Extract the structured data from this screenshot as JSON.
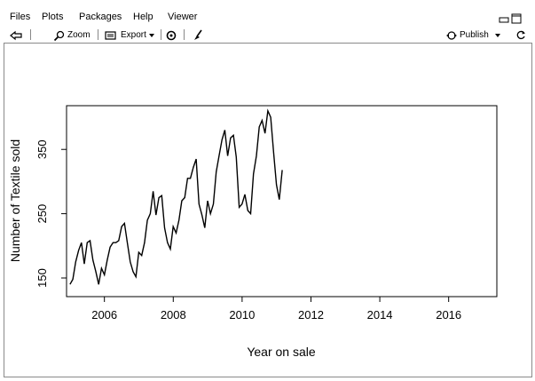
{
  "tabs": [
    {
      "label": "Files"
    },
    {
      "label": "Plots"
    },
    {
      "label": "Packages"
    },
    {
      "label": "Help"
    },
    {
      "label": "Viewer"
    }
  ],
  "toolbar": {
    "zoom_label": "Zoom",
    "export_label": "Export",
    "publish_label": "Publish"
  },
  "chart_data": {
    "type": "line",
    "title": "",
    "xlabel": "Year on sale",
    "ylabel": "Number of Textile sold",
    "xlim": [
      2004.9,
      2017.4
    ],
    "ylim": [
      121,
      418
    ],
    "x_ticks": [
      "2006",
      "2008",
      "2010",
      "2012",
      "2014",
      "2016"
    ],
    "y_ticks": [
      "150",
      "250",
      "350"
    ],
    "series": [
      {
        "start_year": 2005.0,
        "step": 0.0833,
        "color": "#000000",
        "values": [
          140,
          148,
          175,
          193,
          205,
          172,
          205,
          208,
          178,
          160,
          140,
          165,
          155,
          178,
          198,
          205,
          205,
          208,
          230,
          235,
          205,
          175,
          160,
          152,
          190,
          185,
          205,
          240,
          250,
          285,
          248,
          275,
          278,
          228,
          205,
          195,
          230,
          220,
          240,
          270,
          275,
          305,
          305,
          322,
          335,
          265,
          248,
          228,
          270,
          250,
          265,
          315,
          340,
          365,
          380,
          340,
          368,
          372,
          338,
          260,
          265,
          280,
          255,
          250,
          312,
          340,
          385,
          395,
          375,
          410,
          400,
          345,
          295,
          272,
          318
        ]
      }
    ]
  }
}
